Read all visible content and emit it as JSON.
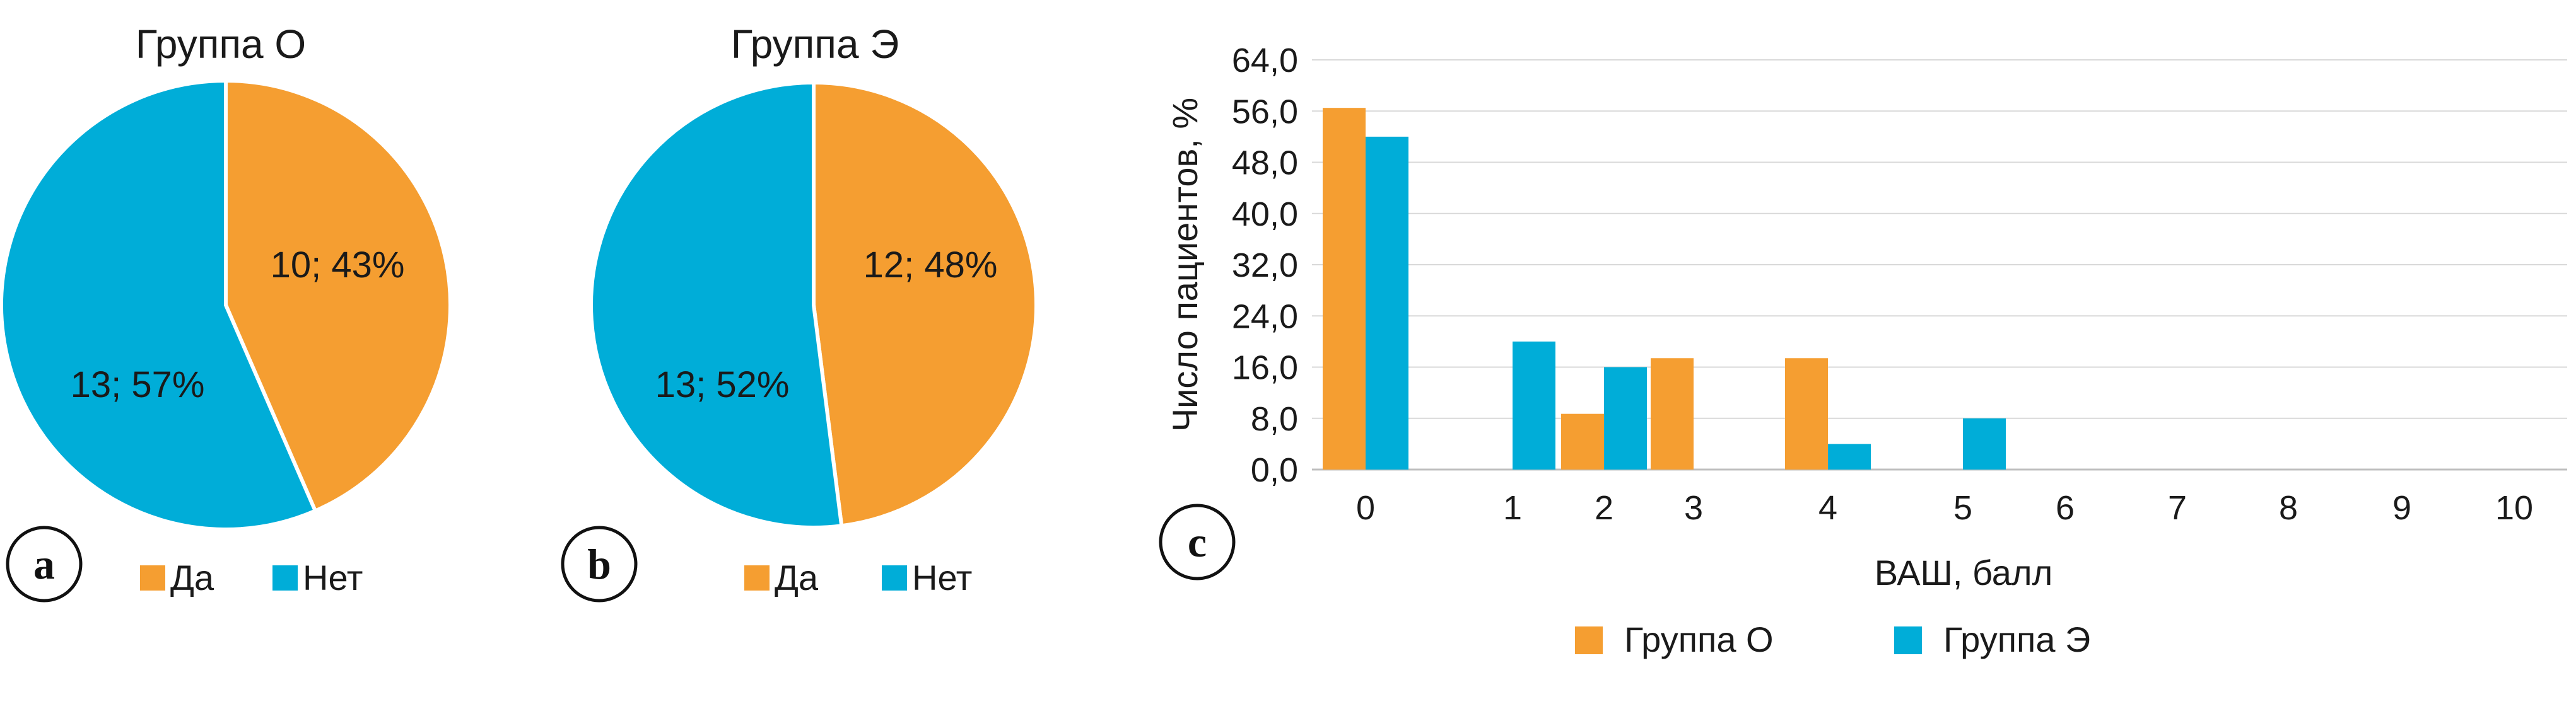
{
  "colors": {
    "orange": "#F59E31",
    "blue": "#00ADD8",
    "grid": "#d9d9d9",
    "axis": "#bfbfbf"
  },
  "panels": {
    "a": {
      "badge": "a",
      "title": "Группа О",
      "slice_labels": [
        "10; 43%",
        "13; 57%"
      ],
      "legend": [
        "Да",
        "Нет"
      ]
    },
    "b": {
      "badge": "b",
      "title": "Группа Э",
      "slice_labels": [
        "12; 48%",
        "13; 52%"
      ],
      "legend": [
        "Да",
        "Нет"
      ]
    },
    "c": {
      "badge": "c"
    }
  },
  "chart_data": [
    {
      "type": "pie",
      "title": "Группа О",
      "categories": [
        "Да",
        "Нет"
      ],
      "values": [
        10,
        13
      ],
      "percent": [
        43,
        57
      ],
      "colors": [
        "#F59E31",
        "#00ADD8"
      ]
    },
    {
      "type": "pie",
      "title": "Группа Э",
      "categories": [
        "Да",
        "Нет"
      ],
      "values": [
        12,
        13
      ],
      "percent": [
        48,
        52
      ],
      "colors": [
        "#F59E31",
        "#00ADD8"
      ]
    },
    {
      "type": "bar",
      "xlabel": "ВАШ, балл",
      "ylabel": "Число пациентов, %",
      "ylim": [
        0,
        64
      ],
      "yticks": [
        "0,0",
        "8,0",
        "16,0",
        "24,0",
        "32,0",
        "40,0",
        "48,0",
        "56,0",
        "64,0"
      ],
      "categories": [
        "0",
        "1",
        "2",
        "3",
        "4",
        "5",
        "6",
        "7",
        "8",
        "9",
        "10"
      ],
      "grid": true,
      "legend_position": "bottom",
      "series": [
        {
          "name": "Группа О",
          "color": "#F59E31",
          "values": [
            56.5,
            0,
            8.7,
            17.4,
            17.4,
            0,
            0,
            0,
            0,
            0,
            0
          ]
        },
        {
          "name": "Группа Э",
          "color": "#00ADD8",
          "values": [
            52,
            20,
            16,
            0,
            4,
            8,
            0,
            0,
            0,
            0,
            0
          ]
        }
      ]
    }
  ]
}
